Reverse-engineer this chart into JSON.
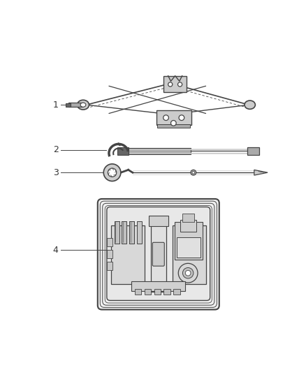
{
  "bg_color": "#ffffff",
  "line_color": "#444444",
  "light_gray": "#cccccc",
  "mid_gray": "#aaaaaa",
  "dark_gray": "#666666",
  "label_color": "#333333",
  "label_fontsize": 9,
  "fig_width": 4.38,
  "fig_height": 5.33,
  "dpi": 100
}
